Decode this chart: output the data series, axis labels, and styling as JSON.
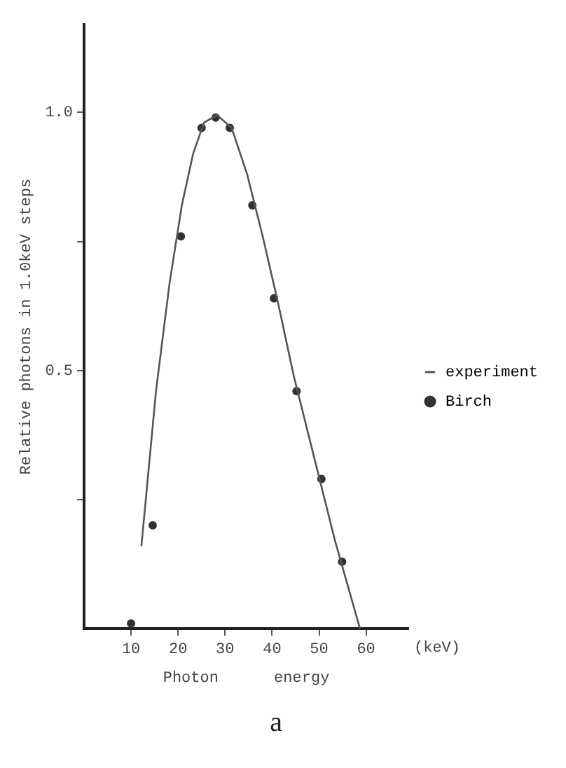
{
  "chart_data": {
    "type": "line",
    "title": "a",
    "xlabel": "Photon      energy",
    "ylabel": "Relative photons in 1.0keV steps",
    "annotations": [
      "(keV)"
    ],
    "xlim": [
      0,
      69
    ],
    "ylim": [
      0,
      1.17
    ],
    "xticks": [
      10,
      20,
      30,
      40,
      50,
      60
    ],
    "yticks": [
      {
        "value": 0.25,
        "label": null
      },
      {
        "value": 0.5,
        "label": "0.5"
      },
      {
        "value": 0.75,
        "label": null
      },
      {
        "value": 1.0,
        "label": "1.0"
      }
    ],
    "grid": false,
    "legend": "right",
    "series": [
      {
        "name": "experiment",
        "color": "#555555",
        "marker": "none",
        "x": [
          12.2,
          15.3,
          18.2,
          20.8,
          23.2,
          25.5,
          28.3,
          31.4,
          34.7,
          38,
          41.3,
          44.6,
          49,
          53.4,
          58.7
        ],
        "values": [
          0.16,
          0.46,
          0.67,
          0.82,
          0.92,
          0.98,
          0.995,
          0.97,
          0.88,
          0.76,
          0.63,
          0.49,
          0.33,
          0.17,
          0
        ]
      },
      {
        "name": "Birch",
        "type": "scatter",
        "color": "#333333",
        "marker": "circle",
        "x": [
          10,
          14.6,
          20.6,
          25,
          28,
          31,
          35.8,
          40.4,
          45.2,
          50.5,
          54.9
        ],
        "values": [
          0.01,
          0.2,
          0.76,
          0.97,
          0.99,
          0.97,
          0.82,
          0.64,
          0.46,
          0.29,
          0.13
        ]
      }
    ]
  }
}
